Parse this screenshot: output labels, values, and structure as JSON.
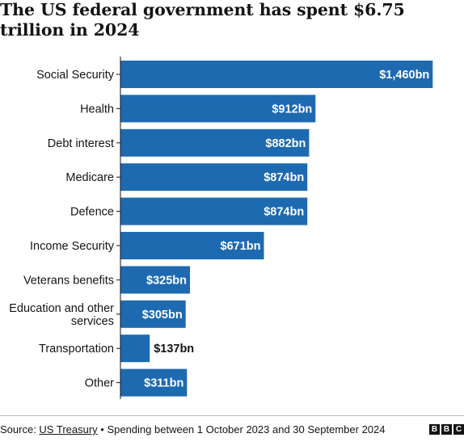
{
  "title": "The US federal government has spent $6.75 trillion in 2024",
  "footer": {
    "source_prefix": "Source: ",
    "source_link": "US Treasury",
    "note": " • Spending between 1 October 2023 and 30 September 2024",
    "logo_letters": [
      "B",
      "B",
      "C"
    ]
  },
  "colors": {
    "bar": "#1e6ab0",
    "label_inside": "#ffffff",
    "label_outside": "#141414",
    "axis": "#141414"
  },
  "chart_data": {
    "type": "bar",
    "orientation": "horizontal",
    "unit": "$bn",
    "categories": [
      [
        "Social Security"
      ],
      [
        "Health"
      ],
      [
        "Debt interest"
      ],
      [
        "Medicare"
      ],
      [
        "Defence"
      ],
      [
        "Income Security"
      ],
      [
        "Veterans benefits"
      ],
      [
        "Education and other",
        "services"
      ],
      [
        "Transportation"
      ],
      [
        "Other"
      ]
    ],
    "values": [
      1460,
      912,
      882,
      874,
      874,
      671,
      325,
      305,
      137,
      311
    ],
    "value_labels": [
      "$1,460bn",
      "$912bn",
      "$882bn",
      "$874bn",
      "$874bn",
      "$671bn",
      "$325bn",
      "$305bn",
      "$137bn",
      "$311bn"
    ],
    "xlim": [
      0,
      1474
    ],
    "grid": false,
    "legend": "none"
  }
}
